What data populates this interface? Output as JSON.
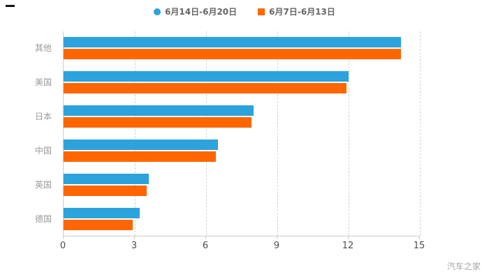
{
  "watermark": "汽车之家",
  "chart_data": {
    "type": "bar",
    "orientation": "horizontal",
    "title": "",
    "xlabel": "",
    "ylabel": "",
    "categories": [
      "其他",
      "美国",
      "日本",
      "中国",
      "英国",
      "德国"
    ],
    "series": [
      {
        "name": "6月14日-6月20日",
        "color": "#2CA3DC",
        "marker": "circle",
        "values": [
          14.2,
          12.0,
          8.0,
          6.5,
          3.6,
          3.2
        ]
      },
      {
        "name": "6月7日-6月13日",
        "color": "#FF6600",
        "marker": "square",
        "values": [
          14.2,
          11.9,
          7.9,
          6.4,
          3.5,
          2.9
        ]
      }
    ],
    "xlim": [
      0,
      15
    ],
    "xticks": [
      0,
      3,
      6,
      9,
      12,
      15
    ],
    "grid": true,
    "grid_style": "dashed",
    "legend_position": "top"
  }
}
